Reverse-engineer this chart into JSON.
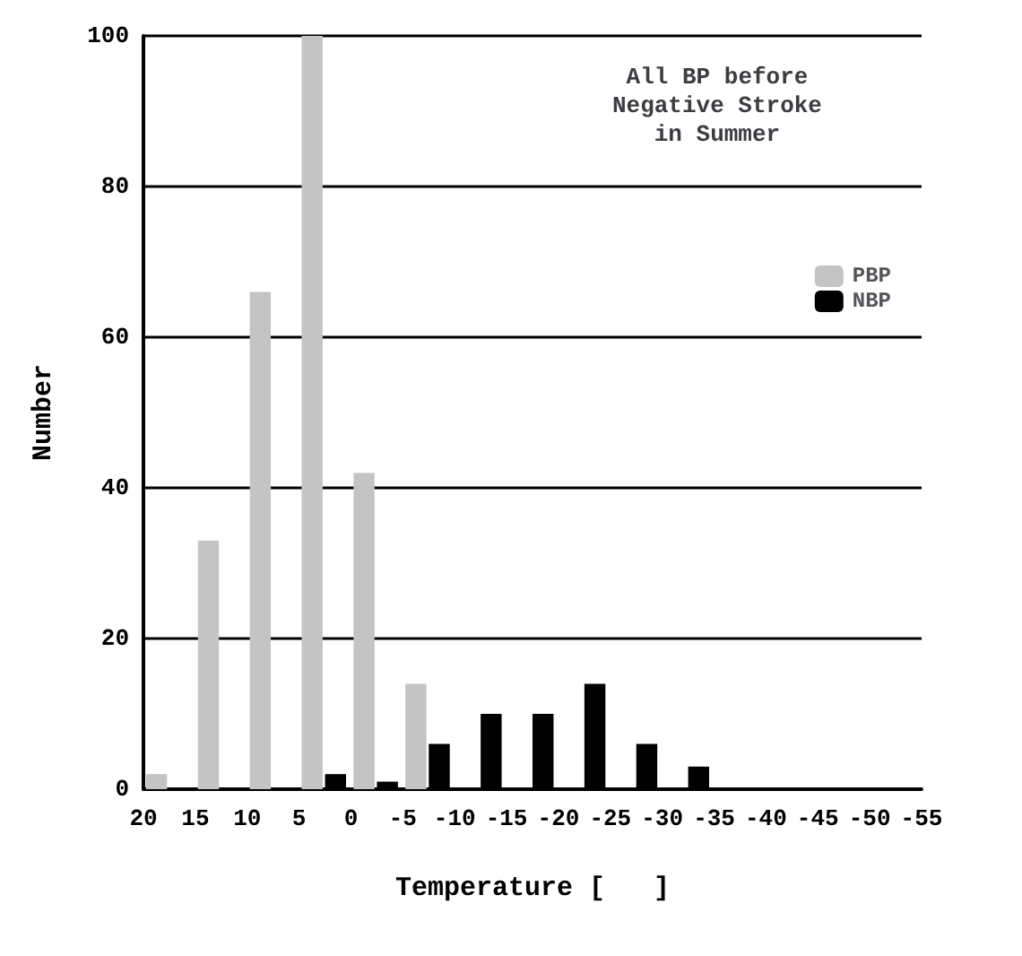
{
  "chart_data": {
    "type": "histogram",
    "title": "All BP before\nNegative Stroke\nin Summer",
    "xlabel": "Temperature [   ]",
    "ylabel": "Number",
    "bins": [
      20,
      15,
      10,
      5,
      0,
      -5,
      -10,
      -15,
      -20,
      -25,
      -30,
      -35,
      -40,
      -45,
      -50,
      -55
    ],
    "series": [
      {
        "name": "PBP",
        "color": "#c4c4c4",
        "values": [
          2,
          33,
          66,
          100,
          42,
          14,
          0,
          0,
          0,
          0,
          0,
          0,
          0,
          0,
          0
        ]
      },
      {
        "name": "NBP",
        "color": "#000000",
        "values": [
          0,
          0,
          0,
          2,
          1,
          6,
          10,
          10,
          14,
          6,
          3,
          0,
          0,
          0,
          0
        ]
      }
    ],
    "xlim": [
      20,
      -55
    ],
    "xticks": [
      20,
      15,
      10,
      5,
      0,
      -5,
      -10,
      -15,
      -20,
      -25,
      -30,
      -35,
      -40,
      -45,
      -50,
      -55
    ],
    "ylim": [
      0,
      100
    ],
    "yticks": [
      0,
      20,
      40,
      60,
      80,
      100
    ],
    "grid": "y",
    "legend": "top right"
  }
}
